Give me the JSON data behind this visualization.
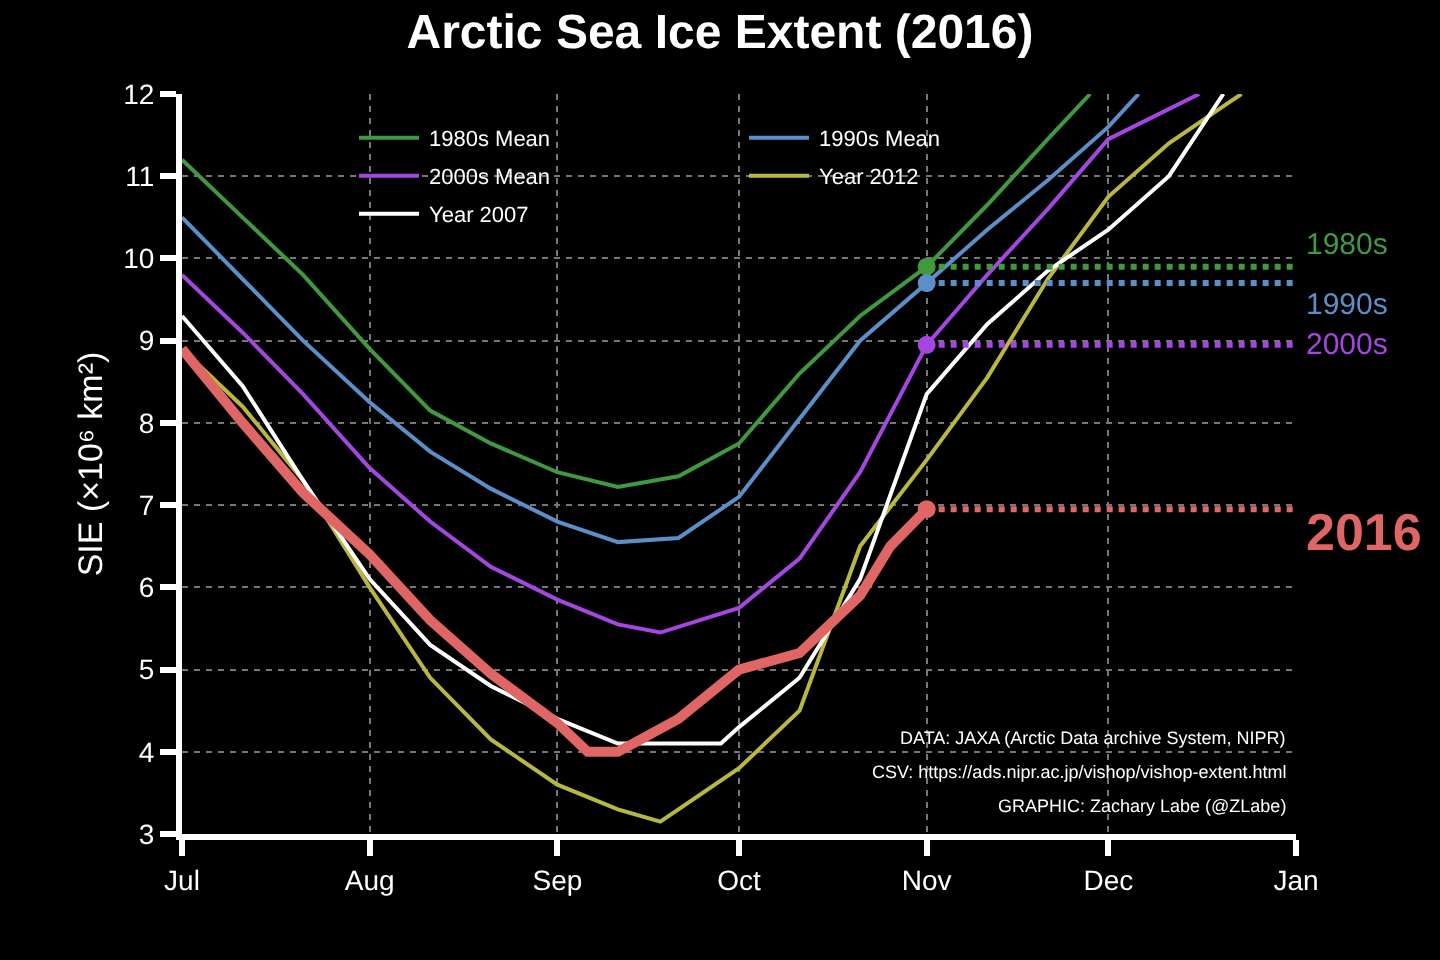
{
  "chart_data": {
    "type": "line",
    "title": "Arctic Sea Ice Extent (2016)",
    "ylabel": "SIE (×10⁶ km²)",
    "xlim": [
      "2016-07-01",
      "2017-01-01"
    ],
    "xticks": [
      {
        "value": "2016-07-01",
        "label": "Jul"
      },
      {
        "value": "2016-08-01",
        "label": "Aug"
      },
      {
        "value": "2016-09-01",
        "label": "Sep"
      },
      {
        "value": "2016-10-01",
        "label": "Oct"
      },
      {
        "value": "2016-11-01",
        "label": "Nov"
      },
      {
        "value": "2016-12-01",
        "label": "Dec"
      },
      {
        "value": "2017-01-01",
        "label": "Jan"
      }
    ],
    "ylim": [
      3,
      12
    ],
    "yticks": [
      3,
      4,
      5,
      6,
      7,
      8,
      9,
      10,
      11,
      12
    ],
    "grid": true,
    "legend": "top",
    "marker": "none",
    "line_style": "solid",
    "series": [
      {
        "name": "1980s Mean",
        "color": "#3f9a3f",
        "x": [
          "2016-07-01",
          "2016-07-11",
          "2016-07-21",
          "2016-08-01",
          "2016-08-11",
          "2016-08-21",
          "2016-09-01",
          "2016-09-11",
          "2016-09-21",
          "2016-10-01",
          "2016-10-11",
          "2016-10-21",
          "2016-11-01",
          "2016-11-11",
          "2016-11-21",
          "2016-11-28"
        ],
        "values": [
          11.2,
          10.5,
          9.8,
          8.9,
          8.15,
          7.75,
          7.4,
          7.22,
          7.35,
          7.75,
          8.6,
          9.3,
          9.9,
          10.65,
          11.45,
          12.0
        ]
      },
      {
        "name": "1990s Mean",
        "color": "#5b8fc7",
        "x": [
          "2016-07-01",
          "2016-07-11",
          "2016-07-21",
          "2016-08-01",
          "2016-08-11",
          "2016-08-21",
          "2016-09-01",
          "2016-09-11",
          "2016-09-21",
          "2016-10-01",
          "2016-10-11",
          "2016-10-21",
          "2016-11-01",
          "2016-11-11",
          "2016-11-21",
          "2016-12-01",
          "2016-12-06"
        ],
        "values": [
          10.5,
          9.75,
          9.0,
          8.25,
          7.65,
          7.2,
          6.8,
          6.55,
          6.6,
          7.1,
          8.05,
          9.0,
          9.7,
          10.35,
          10.95,
          11.6,
          12.0
        ]
      },
      {
        "name": "2000s Mean",
        "color": "#a447e0",
        "x": [
          "2016-07-01",
          "2016-07-11",
          "2016-07-21",
          "2016-08-01",
          "2016-08-11",
          "2016-08-21",
          "2016-09-01",
          "2016-09-11",
          "2016-09-18",
          "2016-10-01",
          "2016-10-11",
          "2016-10-21",
          "2016-11-01",
          "2016-11-11",
          "2016-11-21",
          "2016-12-01",
          "2016-12-16"
        ],
        "values": [
          9.8,
          9.1,
          8.35,
          7.45,
          6.8,
          6.25,
          5.85,
          5.55,
          5.45,
          5.75,
          6.35,
          7.4,
          8.95,
          9.8,
          10.6,
          11.45,
          12.0
        ]
      },
      {
        "name": "Year 2012",
        "color": "#b8b840",
        "x": [
          "2016-07-01",
          "2016-07-11",
          "2016-07-21",
          "2016-08-01",
          "2016-08-11",
          "2016-08-21",
          "2016-09-01",
          "2016-09-11",
          "2016-09-18",
          "2016-09-21",
          "2016-10-01",
          "2016-10-11",
          "2016-10-21",
          "2016-11-01",
          "2016-11-11",
          "2016-11-21",
          "2016-12-01",
          "2016-12-11",
          "2016-12-21",
          "2016-12-23"
        ],
        "values": [
          8.9,
          8.2,
          7.3,
          6.0,
          4.9,
          4.15,
          3.6,
          3.3,
          3.15,
          3.3,
          3.8,
          4.5,
          6.5,
          7.55,
          8.55,
          9.75,
          10.75,
          11.4,
          11.9,
          12.0
        ]
      },
      {
        "name": "Year 2007",
        "color": "#ffffff",
        "x": [
          "2016-07-01",
          "2016-07-11",
          "2016-07-21",
          "2016-08-01",
          "2016-08-11",
          "2016-08-21",
          "2016-09-01",
          "2016-09-11",
          "2016-09-21",
          "2016-09-28",
          "2016-10-01",
          "2016-10-11",
          "2016-10-21",
          "2016-11-01",
          "2016-11-11",
          "2016-11-21",
          "2016-12-01",
          "2016-12-11",
          "2016-12-20"
        ],
        "values": [
          9.3,
          8.45,
          7.3,
          6.1,
          5.3,
          4.8,
          4.4,
          4.1,
          4.1,
          4.1,
          4.3,
          4.9,
          6.1,
          8.35,
          9.2,
          9.85,
          10.35,
          11.0,
          12.0
        ]
      },
      {
        "name": "2016",
        "color": "#e06666",
        "x": [
          "2016-07-01",
          "2016-07-11",
          "2016-07-21",
          "2016-08-01",
          "2016-08-11",
          "2016-08-21",
          "2016-09-01",
          "2016-09-06",
          "2016-09-11",
          "2016-09-21",
          "2016-10-01",
          "2016-10-11",
          "2016-10-21",
          "2016-10-26",
          "2016-11-01"
        ],
        "values": [
          8.9,
          8.0,
          7.15,
          6.4,
          5.6,
          4.95,
          4.35,
          4.0,
          4.0,
          4.4,
          5.0,
          5.2,
          5.9,
          6.5,
          6.95
        ]
      }
    ],
    "ref_lines": [
      {
        "axis": "y",
        "value": 9.9,
        "label": "1980s",
        "color": "#3f9a3f",
        "line_style": "dotted"
      },
      {
        "axis": "y",
        "value": 9.7,
        "label": "1990s",
        "color": "#5b8fc7",
        "line_style": "dotted"
      },
      {
        "axis": "y",
        "value": 8.95,
        "label": "2000s",
        "color": "#a447e0",
        "line_style": "dotted"
      },
      {
        "axis": "y",
        "value": 6.95,
        "color": "#e06666",
        "line_style": "dotted"
      }
    ],
    "annotations": [
      "DATA: JAXA (Arctic Data archive System, NIPR)",
      "CSV: https://ads.nipr.ac.jp/vishop/vishop-extent.html",
      "GRAPHIC: Zachary Labe (@ZLabe)"
    ]
  }
}
